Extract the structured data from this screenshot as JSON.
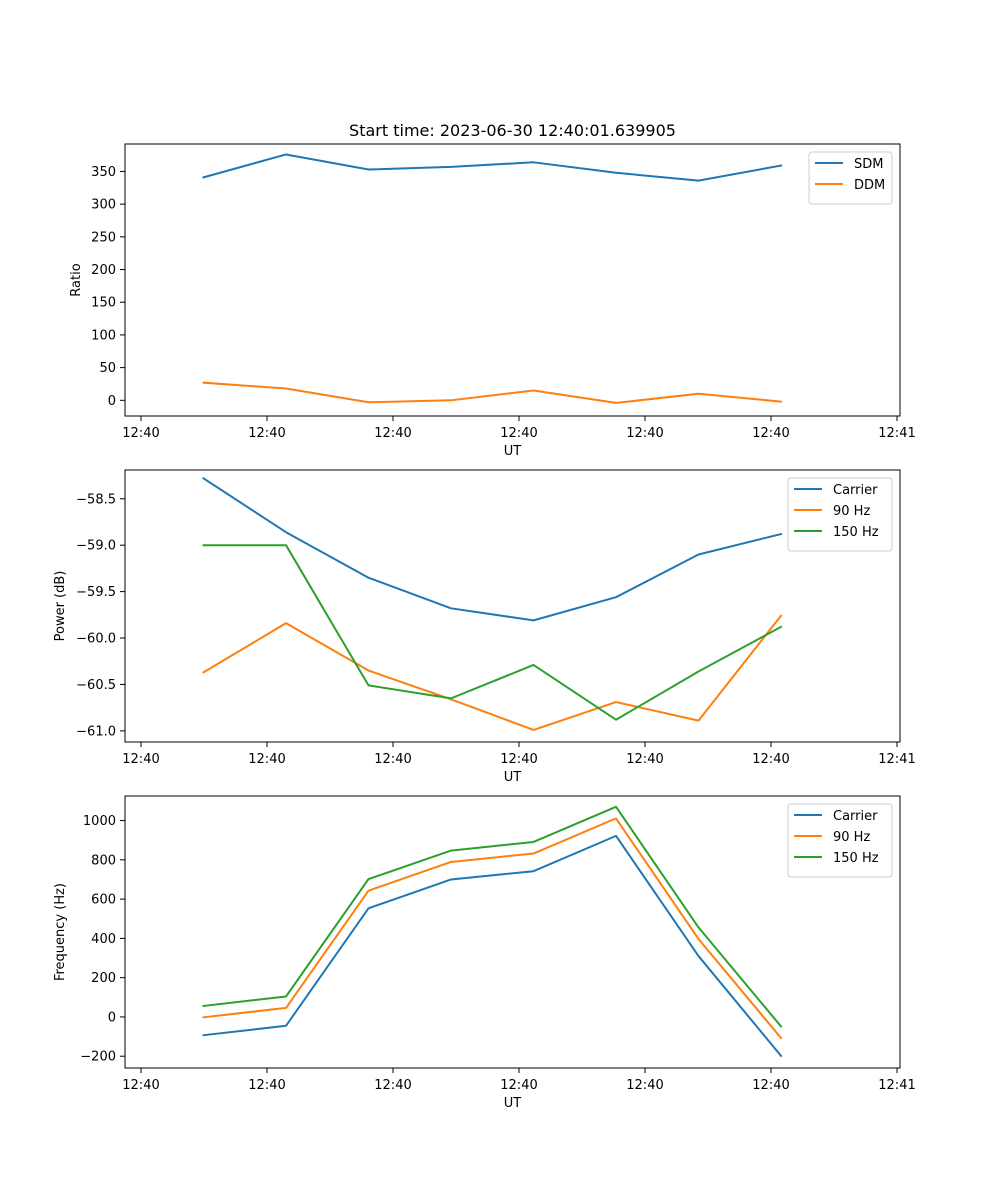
{
  "figure": {
    "title": "Start time: 2023-06-30 12:40:01.639905"
  },
  "chart_data": [
    {
      "type": "line",
      "xlabel": "UT",
      "ylabel": "Ratio",
      "x_tick_labels": [
        "12:40",
        "12:40",
        "12:40",
        "12:40",
        "12:40",
        "12:40",
        "12:41"
      ],
      "y_ticks": [
        0,
        50,
        100,
        150,
        200,
        250,
        300,
        350
      ],
      "ylim": [
        -24,
        392
      ],
      "legend_position": "top-right",
      "series": [
        {
          "name": "SDM",
          "color": "#1f77b4",
          "values": [
            341,
            376,
            353,
            357,
            364,
            348,
            336,
            359
          ]
        },
        {
          "name": "DDM",
          "color": "#ff7f0e",
          "values": [
            27,
            18,
            -3,
            0,
            15,
            -4,
            10,
            -2
          ]
        }
      ]
    },
    {
      "type": "line",
      "xlabel": "UT",
      "ylabel": "Power (dB)",
      "x_tick_labels": [
        "12:40",
        "12:40",
        "12:40",
        "12:40",
        "12:40",
        "12:40",
        "12:41"
      ],
      "y_ticks": [
        -61.0,
        -60.5,
        -60.0,
        -59.5,
        -59.0,
        -58.5
      ],
      "y_tick_labels": [
        "−61.0",
        "−60.5",
        "−60.0",
        "−59.5",
        "−59.0",
        "−58.5"
      ],
      "ylim": [
        -61.12,
        -58.19
      ],
      "legend_position": "top-right",
      "series": [
        {
          "name": "Carrier",
          "color": "#1f77b4",
          "values": [
            -58.28,
            -58.86,
            -59.35,
            -59.68,
            -59.81,
            -59.56,
            -59.1,
            -58.88
          ]
        },
        {
          "name": "90 Hz",
          "color": "#ff7f0e",
          "values": [
            -60.37,
            -59.84,
            -60.35,
            -60.66,
            -60.99,
            -60.69,
            -60.89,
            -59.76
          ]
        },
        {
          "name": "150 Hz",
          "color": "#2ca02c",
          "values": [
            -59.0,
            -59.0,
            -60.51,
            -60.65,
            -60.29,
            -60.88,
            -60.36,
            -59.88
          ]
        }
      ]
    },
    {
      "type": "line",
      "xlabel": "UT",
      "ylabel": "Frequency (Hz)",
      "x_tick_labels": [
        "12:40",
        "12:40",
        "12:40",
        "12:40",
        "12:40",
        "12:40",
        "12:41"
      ],
      "y_ticks": [
        -200,
        0,
        200,
        400,
        600,
        800,
        1000
      ],
      "y_tick_labels": [
        "−200",
        "0",
        "200",
        "400",
        "600",
        "800",
        "1000"
      ],
      "ylim": [
        -260,
        1125
      ],
      "legend_position": "top-right",
      "series": [
        {
          "name": "Carrier",
          "color": "#1f77b4",
          "values": [
            -93,
            -45,
            553,
            700,
            742,
            922,
            310,
            -198
          ]
        },
        {
          "name": "90 Hz",
          "color": "#ff7f0e",
          "values": [
            -2,
            46,
            643,
            789,
            832,
            1011,
            397,
            -107
          ]
        },
        {
          "name": "150 Hz",
          "color": "#2ca02c",
          "values": [
            56,
            104,
            702,
            847,
            891,
            1070,
            456,
            -48
          ]
        }
      ]
    }
  ]
}
